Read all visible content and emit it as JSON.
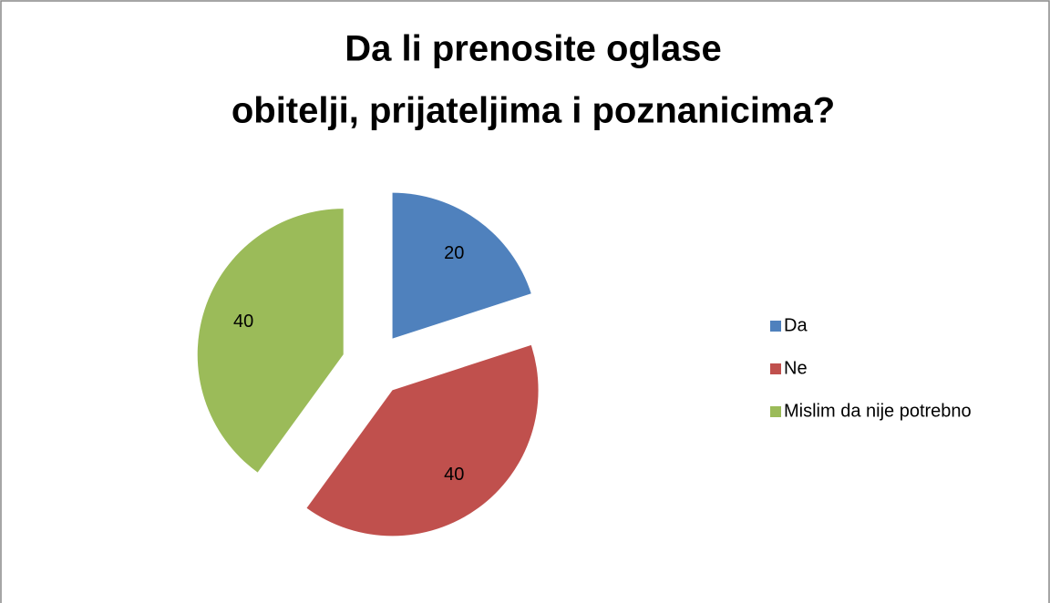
{
  "chart_data": {
    "type": "pie",
    "title": [
      "Da li prenosite oglase",
      "obitelji, prijateljima i poznanicima?"
    ],
    "categories": [
      "Da",
      "Ne",
      "Mislim da nije potrebno"
    ],
    "values": [
      20,
      40,
      40
    ],
    "colors": [
      "#4f81bd",
      "#c0504d",
      "#9bbb59"
    ],
    "legend": "right"
  }
}
